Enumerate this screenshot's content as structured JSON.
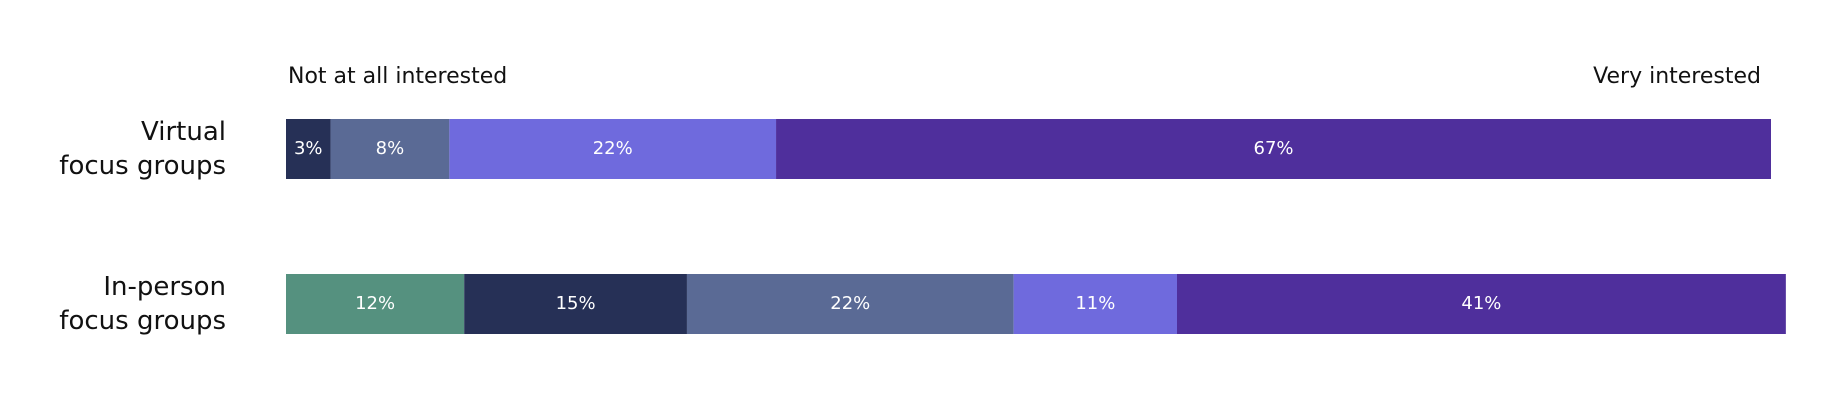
{
  "chart_data": {
    "type": "stacked-barh",
    "categories": [
      "Virtual focus groups",
      "In-person focus groups"
    ],
    "annotations": [
      "Not at all interested",
      "Very interested"
    ],
    "xlim": [
      0,
      100
    ],
    "series": [
      {
        "color": "#55917f",
        "values": [
          null,
          12
        ],
        "value_labels": [
          null,
          "12%"
        ]
      },
      {
        "color": "#263056",
        "values": [
          3,
          15
        ],
        "value_labels": [
          "3%",
          "15%"
        ]
      },
      {
        "color": "#5a6a95",
        "values": [
          8,
          22
        ],
        "value_labels": [
          "8%",
          "22%"
        ]
      },
      {
        "color": "#6f6add",
        "values": [
          22,
          11
        ],
        "value_labels": [
          "22%",
          "11%"
        ]
      },
      {
        "color": "#4f2f9c",
        "values": [
          67,
          41
        ],
        "value_labels": [
          "67%",
          "41%"
        ]
      }
    ]
  }
}
